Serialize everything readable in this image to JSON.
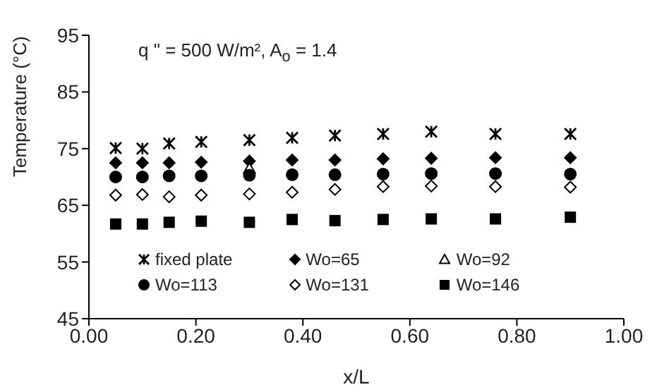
{
  "chart_data": {
    "type": "scatter",
    "xlabel": "x/L",
    "ylabel": "Temperature (°C)",
    "annotations": [
      "q \" = 500 W/m², A$_{o}$ = 1.4"
    ],
    "x": [
      0.05,
      0.1,
      0.15,
      0.21,
      0.3,
      0.38,
      0.46,
      0.55,
      0.64,
      0.76,
      0.9
    ],
    "xlim": [
      0,
      1
    ],
    "xticks": [
      {
        "value": 0,
        "label": "0.00"
      },
      {
        "value": 0.2,
        "label": "0.20"
      },
      {
        "value": 0.4,
        "label": "0.40"
      },
      {
        "value": 0.6,
        "label": "0.60"
      },
      {
        "value": 0.8,
        "label": "0.80"
      },
      {
        "value": 1,
        "label": "1.00"
      }
    ],
    "ylim": [
      45,
      95
    ],
    "yticks": [
      45,
      55,
      65,
      75,
      85,
      95
    ],
    "grid": false,
    "legend": "bottom",
    "series": [
      {
        "name": "fixed plate",
        "color": "#000000",
        "marker": "cross",
        "values": [
          75.1,
          75.0,
          75.9,
          76.2,
          76.5,
          76.9,
          77.3,
          77.6,
          78.0,
          77.6,
          77.6
        ]
      },
      {
        "name": "Wo=65",
        "color": "#000000",
        "marker": "diamond",
        "values": [
          72.5,
          72.5,
          72.5,
          72.6,
          72.8,
          73.0,
          73.0,
          73.2,
          73.3,
          73.4,
          73.4
        ]
      },
      {
        "name": "Wo=92",
        "color": "#ffffff",
        "marker": "triangle",
        "values": [
          null,
          null,
          null,
          null,
          71.5,
          null,
          null,
          null,
          null,
          null,
          null
        ]
      },
      {
        "name": "Wo=113",
        "color": "#000000",
        "marker": "circle",
        "values": [
          70.0,
          70.0,
          70.2,
          70.2,
          70.3,
          70.4,
          70.4,
          70.5,
          70.6,
          70.6,
          70.5
        ]
      },
      {
        "name": "Wo=131",
        "color": "#ffffff",
        "marker": "diamond",
        "values": [
          66.8,
          66.9,
          66.5,
          66.8,
          67.0,
          67.3,
          67.8,
          68.3,
          68.4,
          68.3,
          68.2
        ]
      },
      {
        "name": "Wo=146",
        "color": "#000000",
        "marker": "square",
        "values": [
          61.7,
          61.7,
          62.0,
          62.2,
          62.0,
          62.5,
          62.3,
          62.5,
          62.6,
          62.6,
          62.9
        ]
      }
    ]
  }
}
